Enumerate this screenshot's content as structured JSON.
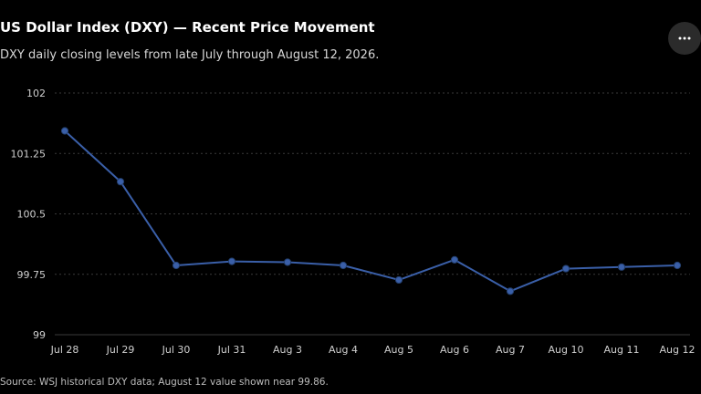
{
  "header": {
    "title": "US Dollar Index (DXY) — Recent Price Movement",
    "subtitle": "DXY daily closing levels from late July through August 12, 2026.",
    "menu_icon": "more-horizontal-icon"
  },
  "footer": {
    "source": "Source: WSJ historical DXY data; August 12 value shown near 99.86."
  },
  "colors": {
    "background": "#000000",
    "line": "#3a5fa8",
    "point": "#3a5fa8",
    "grid": "#3a3a3a",
    "tick_label": "#cfcfcf"
  },
  "chart_data": {
    "type": "line",
    "title": "US Dollar Index (DXY) — Recent Price Movement",
    "categories": [
      "Jul 28",
      "Jul 29",
      "Jul 30",
      "Jul 31",
      "Aug 3",
      "Aug 4",
      "Aug 5",
      "Aug 6",
      "Aug 7",
      "Aug 10",
      "Aug 11",
      "Aug 12"
    ],
    "series": [
      {
        "values": [
          101.53,
          100.9,
          99.86,
          99.91,
          99.9,
          99.86,
          99.68,
          99.93,
          99.54,
          99.82,
          99.84,
          99.86
        ]
      }
    ],
    "y_ticks": [
      99,
      99.75,
      100.5,
      101.25,
      102
    ],
    "y_tick_labels": [
      "99",
      "99.75",
      "100.5",
      "101.25",
      "102"
    ],
    "ylim": [
      99,
      102
    ],
    "grid": true,
    "legend": "none"
  }
}
